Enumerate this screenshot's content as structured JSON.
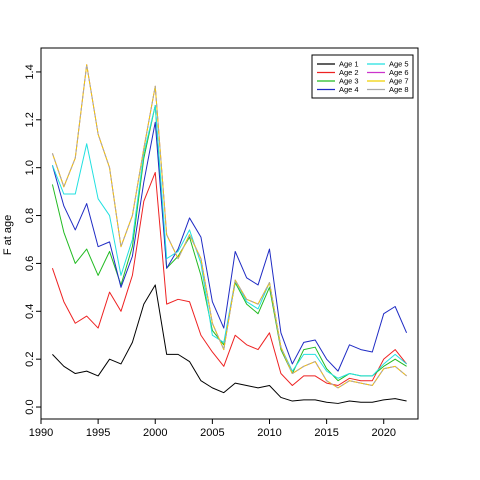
{
  "chart_data": {
    "type": "line",
    "title": "",
    "xlabel": "",
    "ylabel": "F at age",
    "xlim": [
      1990,
      2023
    ],
    "ylim": [
      -0.05,
      1.5
    ],
    "xticks": [
      1990,
      1995,
      2000,
      2005,
      2010,
      2015,
      2020
    ],
    "yticks": [
      0.0,
      0.2,
      0.4,
      0.6,
      0.8,
      1.0,
      1.2,
      1.4
    ],
    "ytick_labels": [
      "0.0",
      "0.2",
      "0.4",
      "0.6",
      "0.8",
      "1.0",
      "1.2",
      "1.4"
    ],
    "grid": false,
    "legend_position": "top-right",
    "x": [
      1991,
      1992,
      1993,
      1994,
      1995,
      1996,
      1997,
      1998,
      1999,
      2000,
      2001,
      2002,
      2003,
      2004,
      2005,
      2006,
      2007,
      2008,
      2009,
      2010,
      2011,
      2012,
      2013,
      2014,
      2015,
      2016,
      2017,
      2018,
      2019,
      2020,
      2021,
      2022
    ],
    "series": [
      {
        "name": "Age 1",
        "color": "#000000",
        "dashed": false,
        "values": [
          0.22,
          0.17,
          0.14,
          0.15,
          0.13,
          0.2,
          0.18,
          0.27,
          0.43,
          0.51,
          0.22,
          0.22,
          0.19,
          0.11,
          0.08,
          0.06,
          0.1,
          0.09,
          0.08,
          0.09,
          0.04,
          0.025,
          0.03,
          0.03,
          0.02,
          0.015,
          0.025,
          0.02,
          0.02,
          0.03,
          0.035,
          0.025
        ]
      },
      {
        "name": "Age 2",
        "color": "#ee2222",
        "dashed": false,
        "values": [
          0.58,
          0.44,
          0.35,
          0.38,
          0.33,
          0.48,
          0.4,
          0.55,
          0.86,
          0.98,
          0.43,
          0.45,
          0.44,
          0.3,
          0.23,
          0.17,
          0.3,
          0.26,
          0.24,
          0.31,
          0.14,
          0.09,
          0.13,
          0.13,
          0.1,
          0.09,
          0.12,
          0.11,
          0.11,
          0.2,
          0.24,
          0.18
        ]
      },
      {
        "name": "Age 3",
        "color": "#22bb22",
        "dashed": false,
        "values": [
          0.93,
          0.73,
          0.6,
          0.66,
          0.55,
          0.65,
          0.51,
          0.67,
          1.04,
          1.26,
          0.58,
          0.63,
          0.71,
          0.55,
          0.32,
          0.26,
          0.52,
          0.43,
          0.39,
          0.5,
          0.24,
          0.14,
          0.24,
          0.25,
          0.16,
          0.11,
          0.14,
          0.13,
          0.13,
          0.17,
          0.2,
          0.17
        ]
      },
      {
        "name": "Age 4",
        "color": "#1f2bc4",
        "dashed": false,
        "values": [
          1.01,
          0.84,
          0.74,
          0.85,
          0.67,
          0.69,
          0.5,
          0.63,
          0.94,
          1.19,
          0.58,
          0.66,
          0.79,
          0.71,
          0.44,
          0.33,
          0.65,
          0.54,
          0.51,
          0.66,
          0.31,
          0.18,
          0.27,
          0.28,
          0.2,
          0.15,
          0.26,
          0.24,
          0.23,
          0.39,
          0.42,
          0.31
        ]
      },
      {
        "name": "Age 5",
        "color": "#22e0e0",
        "dashed": false,
        "values": [
          1.01,
          0.89,
          0.89,
          1.1,
          0.87,
          0.8,
          0.55,
          0.7,
          1.06,
          1.26,
          0.62,
          0.65,
          0.74,
          0.6,
          0.3,
          0.27,
          0.53,
          0.44,
          0.41,
          0.52,
          0.25,
          0.15,
          0.22,
          0.22,
          0.15,
          0.12,
          0.14,
          0.13,
          0.13,
          0.18,
          0.22,
          0.18
        ]
      },
      {
        "name": "Age 6",
        "color": "#cc33cc",
        "dashed": false,
        "values": [
          1.06,
          0.92,
          1.04,
          1.43,
          1.14,
          1.0,
          0.67,
          0.8,
          1.08,
          1.34,
          0.72,
          0.62,
          0.72,
          0.62,
          0.35,
          0.24,
          0.53,
          0.45,
          0.43,
          0.52,
          0.25,
          0.14,
          0.17,
          0.19,
          0.11,
          0.08,
          0.11,
          0.1,
          0.09,
          0.16,
          0.17,
          0.13
        ]
      },
      {
        "name": "Age 7",
        "color": "#f0d000",
        "dashed": false,
        "values": [
          1.06,
          0.92,
          1.04,
          1.43,
          1.14,
          1.0,
          0.67,
          0.8,
          1.08,
          1.34,
          0.72,
          0.62,
          0.72,
          0.62,
          0.35,
          0.24,
          0.53,
          0.45,
          0.43,
          0.52,
          0.25,
          0.14,
          0.17,
          0.19,
          0.11,
          0.08,
          0.11,
          0.1,
          0.09,
          0.16,
          0.17,
          0.13
        ]
      },
      {
        "name": "Age 8",
        "color": "#aaaaaa",
        "dashed": true,
        "values": [
          1.06,
          0.92,
          1.04,
          1.43,
          1.14,
          1.0,
          0.67,
          0.8,
          1.08,
          1.34,
          0.72,
          0.62,
          0.72,
          0.62,
          0.35,
          0.24,
          0.53,
          0.45,
          0.43,
          0.52,
          0.25,
          0.14,
          0.17,
          0.19,
          0.11,
          0.08,
          0.11,
          0.1,
          0.09,
          0.16,
          0.17,
          0.13
        ]
      }
    ],
    "legend_columns": [
      [
        "Age 1",
        "Age 2",
        "Age 3",
        "Age 4"
      ],
      [
        "Age 5",
        "Age 6",
        "Age 7",
        "Age 8"
      ]
    ]
  }
}
